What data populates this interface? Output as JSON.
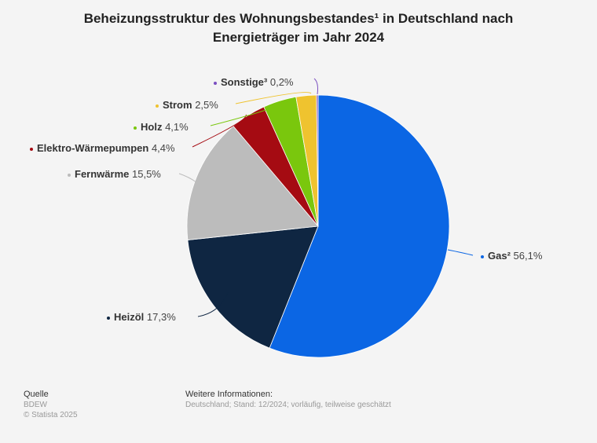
{
  "chart_data": {
    "type": "pie",
    "title": "Beheizungsstruktur des Wohnungsbestandes¹ in Deutschland nach Energieträger im Jahr 2024",
    "title_line1": "Beheizungsstruktur des Wohnungsbestandes¹ in Deutschland nach",
    "title_line2": "Energieträger im Jahr 2024",
    "slices": [
      {
        "name": "Gas²",
        "value": 56.1,
        "label": "56,1%",
        "color": "#0b66e4"
      },
      {
        "name": "Heizöl",
        "value": 17.3,
        "label": "17,3%",
        "color": "#0f2642"
      },
      {
        "name": "Fernwärme",
        "value": 15.5,
        "label": "15,5%",
        "color": "#bcbcbc"
      },
      {
        "name": "Elektro-Wärmepumpen",
        "value": 4.4,
        "label": "4,4%",
        "color": "#a50b12"
      },
      {
        "name": "Holz",
        "value": 4.1,
        "label": "4,1%",
        "color": "#7ac70d"
      },
      {
        "name": "Strom",
        "value": 2.5,
        "label": "2,5%",
        "color": "#efc32f"
      },
      {
        "name": "Sonstige³",
        "value": 0.2,
        "label": "0,2%",
        "color": "#7a4fc0"
      }
    ]
  },
  "footer": {
    "source_heading": "Quelle",
    "source": "BDEW",
    "copyright": "© Statista 2025",
    "info_heading": "Weitere Informationen:",
    "info": "Deutschland; Stand: 12/2024; vorläufig, teilweise geschätzt"
  }
}
